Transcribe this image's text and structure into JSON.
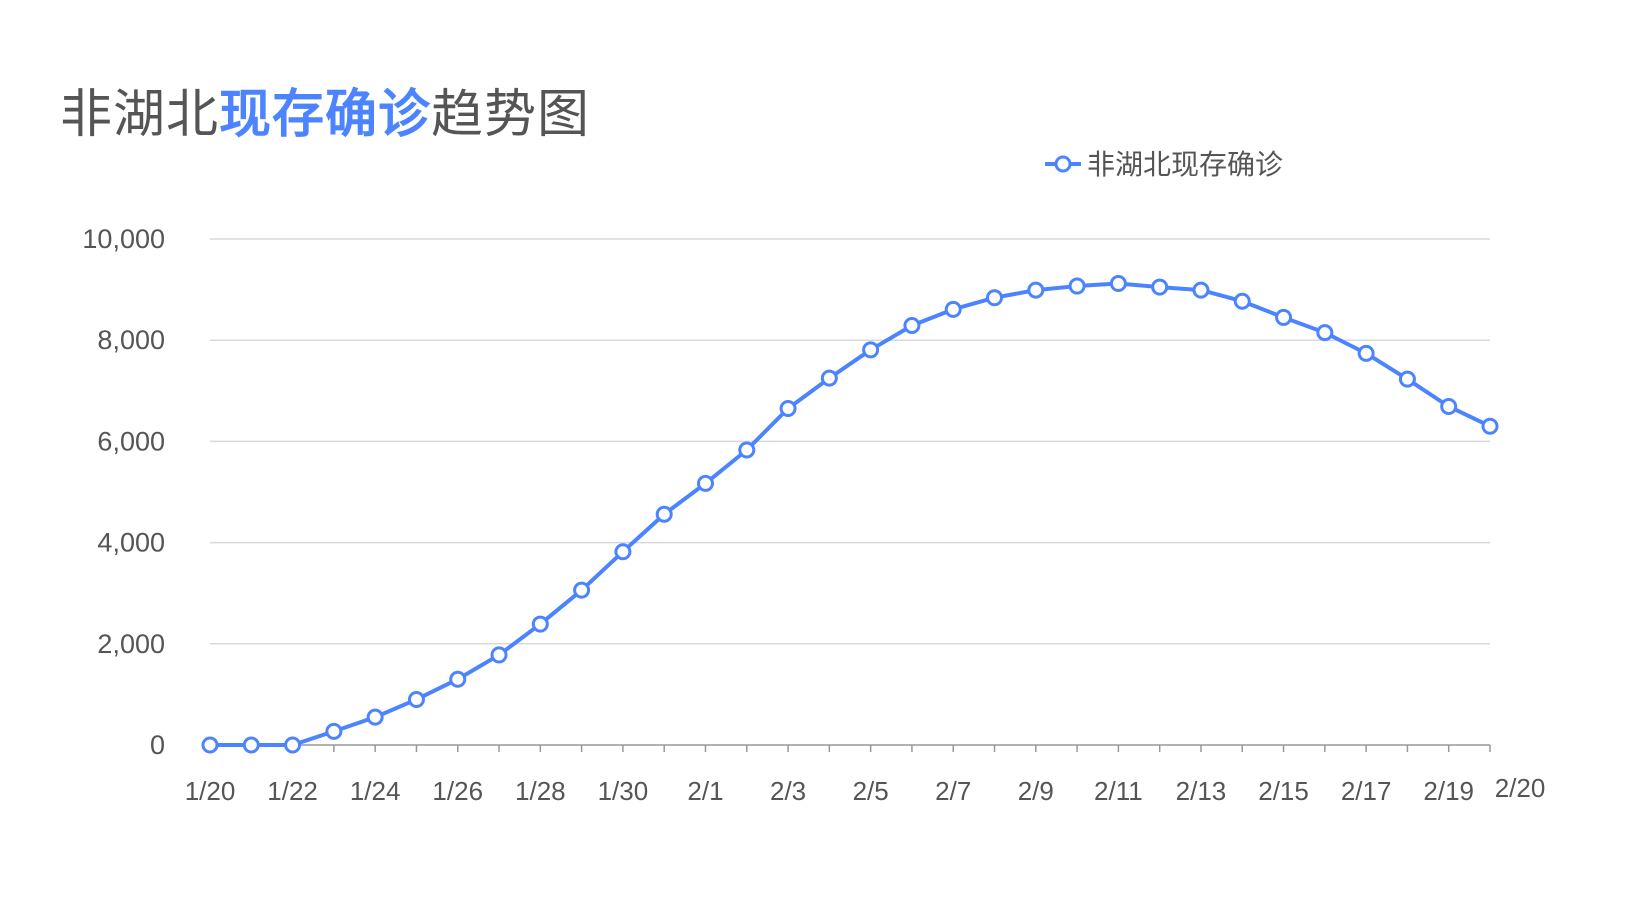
{
  "title": {
    "prefix": "非湖北",
    "highlight": "现存确诊",
    "suffix": "趋势图"
  },
  "colors": {
    "accent": "#4c84ff",
    "text": "#555555",
    "grid": "#d9d9d9"
  },
  "chart_data": {
    "type": "line",
    "title": "非湖北现存确诊趋势图",
    "xlabel": "",
    "ylabel": "",
    "ylim": [
      0,
      10000
    ],
    "yticks": [
      "0",
      "2,000",
      "4,000",
      "6,000",
      "8,000",
      "10,000"
    ],
    "ytick_values": [
      0,
      2000,
      4000,
      6000,
      8000,
      10000
    ],
    "legend_position": "top-right",
    "grid": true,
    "x": [
      "1/20",
      "1/21",
      "1/22",
      "1/23",
      "1/24",
      "1/25",
      "1/26",
      "1/27",
      "1/28",
      "1/29",
      "1/30",
      "1/31",
      "2/1",
      "2/2",
      "2/3",
      "2/4",
      "2/5",
      "2/6",
      "2/7",
      "2/8",
      "2/9",
      "2/10",
      "2/11",
      "2/12",
      "2/13",
      "2/14",
      "2/15",
      "2/16",
      "2/17",
      "2/18",
      "2/19",
      "2/20"
    ],
    "x_tick_labels": [
      "1/20",
      "1/22",
      "1/24",
      "1/26",
      "1/28",
      "1/30",
      "2/1",
      "2/3",
      "2/5",
      "2/7",
      "2/9",
      "2/11",
      "2/13",
      "2/15",
      "2/17",
      "2/19",
      "2/20"
    ],
    "series": [
      {
        "name": "非湖北现存确诊",
        "color": "#4c84ff",
        "values": [
          0,
          0,
          0,
          270,
          550,
          900,
          1300,
          1780,
          2390,
          3060,
          3820,
          4560,
          5170,
          5830,
          6650,
          7250,
          7810,
          8290,
          8610,
          8840,
          8990,
          9070,
          9120,
          9050,
          8990,
          8770,
          8450,
          8150,
          7740,
          7230,
          6690,
          6300
        ]
      }
    ]
  }
}
